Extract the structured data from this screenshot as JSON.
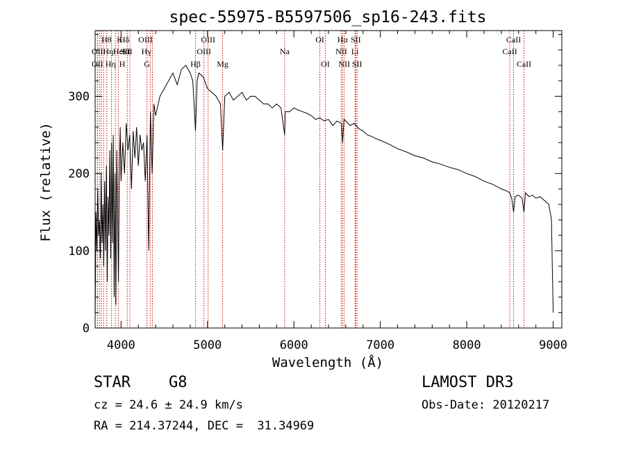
{
  "chart_data": {
    "type": "line",
    "title": "spec-55975-B5597506_sp16-243.fits",
    "xlabel": "Wavelength (Å)",
    "ylabel": "Flux (relative)",
    "xlim": [
      3700,
      9100
    ],
    "ylim": [
      0,
      385
    ],
    "xticks": [
      4000,
      5000,
      6000,
      7000,
      8000,
      9000
    ],
    "yticks": [
      0,
      100,
      200,
      300
    ],
    "grid": false,
    "line_color": "#000000",
    "marker_color": "#cc0000",
    "series": [
      {
        "x": [
          3700,
          3710,
          3720,
          3730,
          3740,
          3750,
          3760,
          3770,
          3780,
          3790,
          3800,
          3810,
          3820,
          3830,
          3840,
          3850,
          3860,
          3870,
          3880,
          3890,
          3900,
          3910,
          3920,
          3930,
          3940,
          3950,
          3960,
          3970,
          3980,
          3990,
          4000,
          4020,
          4040,
          4060,
          4080,
          4100,
          4120,
          4140,
          4160,
          4180,
          4200,
          4220,
          4240,
          4260,
          4280,
          4300,
          4320,
          4340,
          4360,
          4380,
          4400,
          4450,
          4500,
          4550,
          4600,
          4650,
          4700,
          4750,
          4800,
          4830,
          4861,
          4880,
          4900,
          4950,
          5000,
          5050,
          5100,
          5150,
          5175,
          5200,
          5250,
          5300,
          5350,
          5400,
          5450,
          5500,
          5550,
          5600,
          5650,
          5700,
          5750,
          5800,
          5850,
          5893,
          5900,
          5950,
          6000,
          6050,
          6100,
          6150,
          6200,
          6250,
          6300,
          6350,
          6400,
          6450,
          6500,
          6550,
          6563,
          6580,
          6600,
          6650,
          6700,
          6750,
          6800,
          6850,
          6900,
          6950,
          7000,
          7100,
          7200,
          7300,
          7400,
          7500,
          7600,
          7700,
          7800,
          7900,
          8000,
          8100,
          8200,
          8300,
          8400,
          8450,
          8498,
          8520,
          8542,
          8560,
          8600,
          8640,
          8662,
          8680,
          8720,
          8760,
          8800,
          8850,
          8900,
          8950,
          8980,
          8990,
          9000
        ],
        "values": [
          10,
          150,
          100,
          180,
          120,
          140,
          90,
          200,
          110,
          160,
          80,
          190,
          100,
          210,
          60,
          170,
          120,
          230,
          90,
          240,
          110,
          250,
          40,
          200,
          30,
          230,
          140,
          60,
          200,
          260,
          190,
          240,
          200,
          265,
          230,
          250,
          180,
          255,
          220,
          260,
          210,
          250,
          230,
          240,
          190,
          250,
          100,
          280,
          200,
          290,
          275,
          300,
          310,
          320,
          330,
          315,
          335,
          340,
          330,
          320,
          255,
          320,
          330,
          325,
          310,
          305,
          300,
          290,
          230,
          300,
          305,
          295,
          300,
          305,
          295,
          300,
          300,
          295,
          290,
          290,
          285,
          290,
          285,
          250,
          280,
          280,
          285,
          282,
          280,
          278,
          275,
          270,
          272,
          268,
          270,
          262,
          268,
          265,
          240,
          270,
          268,
          262,
          265,
          258,
          255,
          250,
          248,
          245,
          243,
          238,
          232,
          228,
          223,
          220,
          215,
          212,
          208,
          205,
          200,
          196,
          190,
          186,
          180,
          178,
          175,
          168,
          150,
          170,
          172,
          168,
          150,
          175,
          170,
          172,
          168,
          170,
          165,
          160,
          140,
          80,
          20
        ]
      }
    ],
    "line_markers": [
      {
        "wl": 3727,
        "row": 2,
        "label": "OII",
        "dx": 0
      },
      {
        "wl": 3727,
        "row": 3,
        "label": "OII",
        "dx": 0
      },
      {
        "wl": 3750,
        "row": 1,
        "label": "Hθ",
        "dx": 10
      },
      {
        "wl": 3771,
        "row": 2,
        "label": "Hη",
        "dx": 10
      },
      {
        "wl": 3798,
        "row": 3,
        "label": "Hη",
        "dx": 10
      },
      {
        "wl": 3835,
        "row": 2,
        "label": "HeI",
        "dx": 18
      },
      {
        "wl": 3889,
        "row": 1,
        "label": "K",
        "dx": 12
      },
      {
        "wl": 3934,
        "row": 3,
        "label": "H",
        "dx": 10
      },
      {
        "wl": 3968,
        "row": 2,
        "label": "SII",
        "dx": 10
      },
      {
        "wl": 4102,
        "row": 1,
        "label": "Hδ",
        "dx": -8
      },
      {
        "wl": 4072,
        "row": 2,
        "label": "SII",
        "dx": 0
      },
      {
        "wl": 4300,
        "row": 3,
        "label": "G",
        "dx": 0
      },
      {
        "wl": 4340,
        "row": 2,
        "label": "Hγ",
        "dx": -6
      },
      {
        "wl": 4363,
        "row": 1,
        "label": "OIII",
        "dx": -10
      },
      {
        "wl": 4861,
        "row": 3,
        "label": "Hβ",
        "dx": 0
      },
      {
        "wl": 4959,
        "row": 2,
        "label": "OIII",
        "dx": 0
      },
      {
        "wl": 5007,
        "row": 1,
        "label": "OIII",
        "dx": 0
      },
      {
        "wl": 5175,
        "row": 3,
        "label": "Mg",
        "dx": 0
      },
      {
        "wl": 5893,
        "row": 2,
        "label": "Na",
        "dx": 0
      },
      {
        "wl": 6300,
        "row": 1,
        "label": "OI",
        "dx": 0
      },
      {
        "wl": 6364,
        "row": 3,
        "label": "OI",
        "dx": 0
      },
      {
        "wl": 6548,
        "row": 2,
        "label": "NII",
        "dx": 0
      },
      {
        "wl": 6563,
        "row": 1,
        "label": "Hα",
        "dx": 0
      },
      {
        "wl": 6583,
        "row": 3,
        "label": "NII",
        "dx": 0
      },
      {
        "wl": 6707,
        "row": 2,
        "label": "Li",
        "dx": 0
      },
      {
        "wl": 6716,
        "row": 1,
        "label": "SII",
        "dx": 0
      },
      {
        "wl": 6731,
        "row": 3,
        "label": "SII",
        "dx": 0
      },
      {
        "wl": 8498,
        "row": 2,
        "label": "CaII",
        "dx": 0
      },
      {
        "wl": 8542,
        "row": 1,
        "label": "CaII",
        "dx": 0
      },
      {
        "wl": 8662,
        "row": 3,
        "label": "CaII",
        "dx": 0
      }
    ]
  },
  "info": {
    "class_type": "STAR",
    "subclass": "G8",
    "survey": "LAMOST DR3",
    "redshift": "cz = 24.6 ± 24.9 km/s",
    "obs_date": "Obs-Date: 20120217",
    "coords": "RA = 214.37244, DEC =  31.34969"
  }
}
